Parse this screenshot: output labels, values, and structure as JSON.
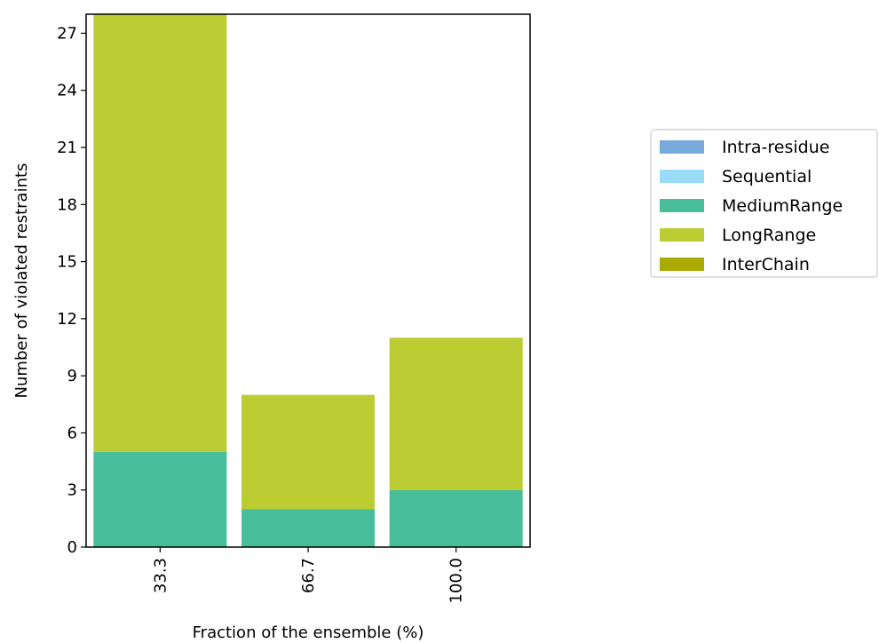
{
  "chart_data": {
    "type": "bar",
    "stacked": true,
    "categories": [
      "33.3",
      "66.7",
      "100.0"
    ],
    "series": [
      {
        "name": "Intra-residue",
        "values": [
          0,
          0,
          0
        ],
        "color": "#77a9db"
      },
      {
        "name": "Sequential",
        "values": [
          0,
          0,
          0
        ],
        "color": "#99dcf8"
      },
      {
        "name": "MediumRange",
        "values": [
          5,
          2,
          3
        ],
        "color": "#47bd99"
      },
      {
        "name": "LongRange",
        "values": [
          23,
          6,
          8
        ],
        "color": "#bccc33"
      },
      {
        "name": "InterChain",
        "values": [
          0,
          0,
          0
        ],
        "color": "#aaaa00"
      }
    ],
    "xlabel": "Fraction of the ensemble (%)",
    "ylabel": "Number of violated restraints",
    "ylim": [
      0,
      28
    ],
    "yticks": [
      0,
      3,
      6,
      9,
      12,
      15,
      18,
      21,
      24,
      27
    ],
    "grid": false,
    "legend_position": "right"
  }
}
